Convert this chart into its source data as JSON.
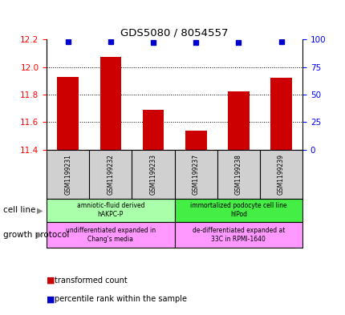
{
  "title": "GDS5080 / 8054557",
  "samples": [
    "GSM1199231",
    "GSM1199232",
    "GSM1199233",
    "GSM1199237",
    "GSM1199238",
    "GSM1199239"
  ],
  "bar_values": [
    11.93,
    12.07,
    11.69,
    11.54,
    11.82,
    11.92
  ],
  "percentile_values": [
    98,
    98,
    97,
    97,
    97,
    98
  ],
  "bar_color": "#cc0000",
  "dot_color": "#0000cc",
  "ylim_left": [
    11.4,
    12.2
  ],
  "ylim_right": [
    0,
    100
  ],
  "yticks_left": [
    11.4,
    11.6,
    11.8,
    12.0,
    12.2
  ],
  "yticks_right": [
    0,
    25,
    50,
    75,
    100
  ],
  "cell_line_left_color": "#aaffaa",
  "cell_line_right_color": "#44dd44",
  "growth_color": "#ff99ff",
  "cell_line_groups": [
    {
      "label": "amniotic-fluid derived\nhAKPC-P",
      "color": "#aaffaa",
      "start": 0,
      "end": 3
    },
    {
      "label": "immortalized podocyte cell line\nhIPod",
      "color": "#44ee44",
      "start": 3,
      "end": 6
    }
  ],
  "growth_protocol_groups": [
    {
      "label": "undifferentiated expanded in\nChang's media",
      "color": "#ff99ff",
      "start": 0,
      "end": 3
    },
    {
      "label": "de-differentiated expanded at\n33C in RPMI-1640",
      "color": "#ff99ff",
      "start": 3,
      "end": 6
    }
  ],
  "legend_items": [
    {
      "color": "#cc0000",
      "label": "transformed count"
    },
    {
      "color": "#0000cc",
      "label": "percentile rank within the sample"
    }
  ],
  "annotation_cell_line": "cell line",
  "annotation_growth": "growth protocol",
  "bar_width": 0.5,
  "sample_box_color": "#d0d0d0",
  "background_color": "#ffffff"
}
